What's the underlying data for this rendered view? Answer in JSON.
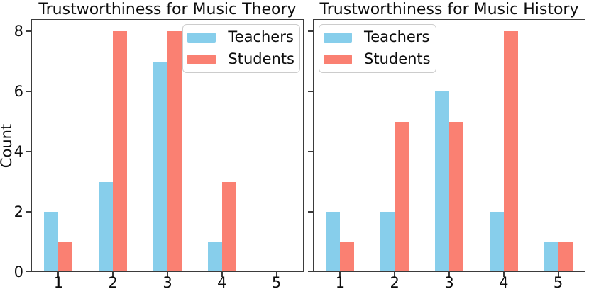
{
  "figure": {
    "background": "#ffffff",
    "text_color": "#111111",
    "spine_color": "#3b3b3b"
  },
  "chart_data": [
    {
      "type": "bar",
      "title": "Trustworthiness for Music Theory",
      "ylabel": "Count",
      "categories": [
        "1",
        "2",
        "3",
        "4",
        "5"
      ],
      "series": [
        {
          "name": "Teachers",
          "color": "#87CEEB",
          "values": [
            2,
            3,
            7,
            1,
            0
          ]
        },
        {
          "name": "Students",
          "color": "#FA8072",
          "values": [
            1,
            8,
            8,
            3,
            0
          ]
        }
      ],
      "ylim": [
        0,
        8.4
      ],
      "yticks": [
        0,
        2,
        4,
        6,
        8
      ],
      "ytick_labels": [
        "0",
        "2",
        "4",
        "6",
        "8"
      ],
      "grid": "off",
      "legend_position": "top-right"
    },
    {
      "type": "bar",
      "title": "Trustworthiness for Music History",
      "ylabel": "",
      "categories": [
        "1",
        "2",
        "3",
        "4",
        "5"
      ],
      "series": [
        {
          "name": "Teachers",
          "color": "#87CEEB",
          "values": [
            2,
            2,
            6,
            2,
            1
          ]
        },
        {
          "name": "Students",
          "color": "#FA8072",
          "values": [
            1,
            5,
            5,
            8,
            1
          ]
        }
      ],
      "ylim": [
        0,
        8.4
      ],
      "yticks": [
        0,
        2,
        4,
        6,
        8
      ],
      "ytick_labels": [
        "",
        "",
        "",
        "",
        ""
      ],
      "grid": "off",
      "legend_position": "top-left"
    }
  ]
}
